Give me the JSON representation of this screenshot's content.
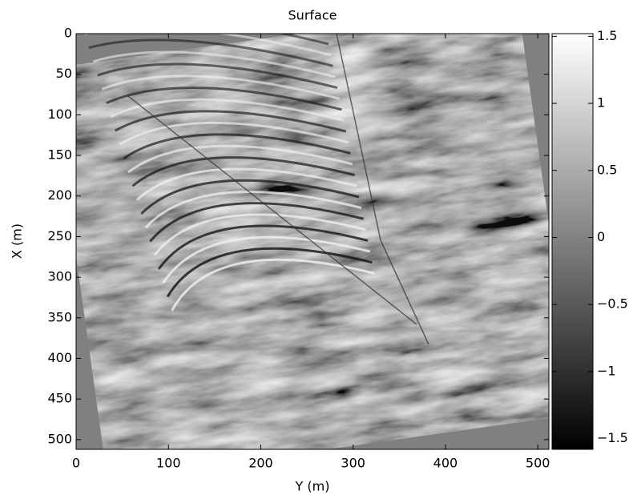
{
  "chart_data": {
    "type": "image",
    "title": "Surface",
    "xlabel": "Y (m)",
    "ylabel": "X (m)",
    "xlim": [
      0,
      512
    ],
    "xticks": [
      0,
      100,
      200,
      300,
      400,
      500
    ],
    "ylim": [
      512,
      0
    ],
    "yticks": [
      0,
      50,
      100,
      150,
      200,
      250,
      300,
      350,
      400,
      450,
      500
    ],
    "colormap": "gray",
    "colorbar": {
      "clim": [
        -1.58,
        1.52
      ],
      "ticks": [
        {
          "value": -1.5,
          "label": "−1.5"
        },
        {
          "value": -1,
          "label": "−1"
        },
        {
          "value": -0.5,
          "label": "−0.5"
        },
        0,
        0.5,
        1,
        1.5
      ]
    }
  }
}
